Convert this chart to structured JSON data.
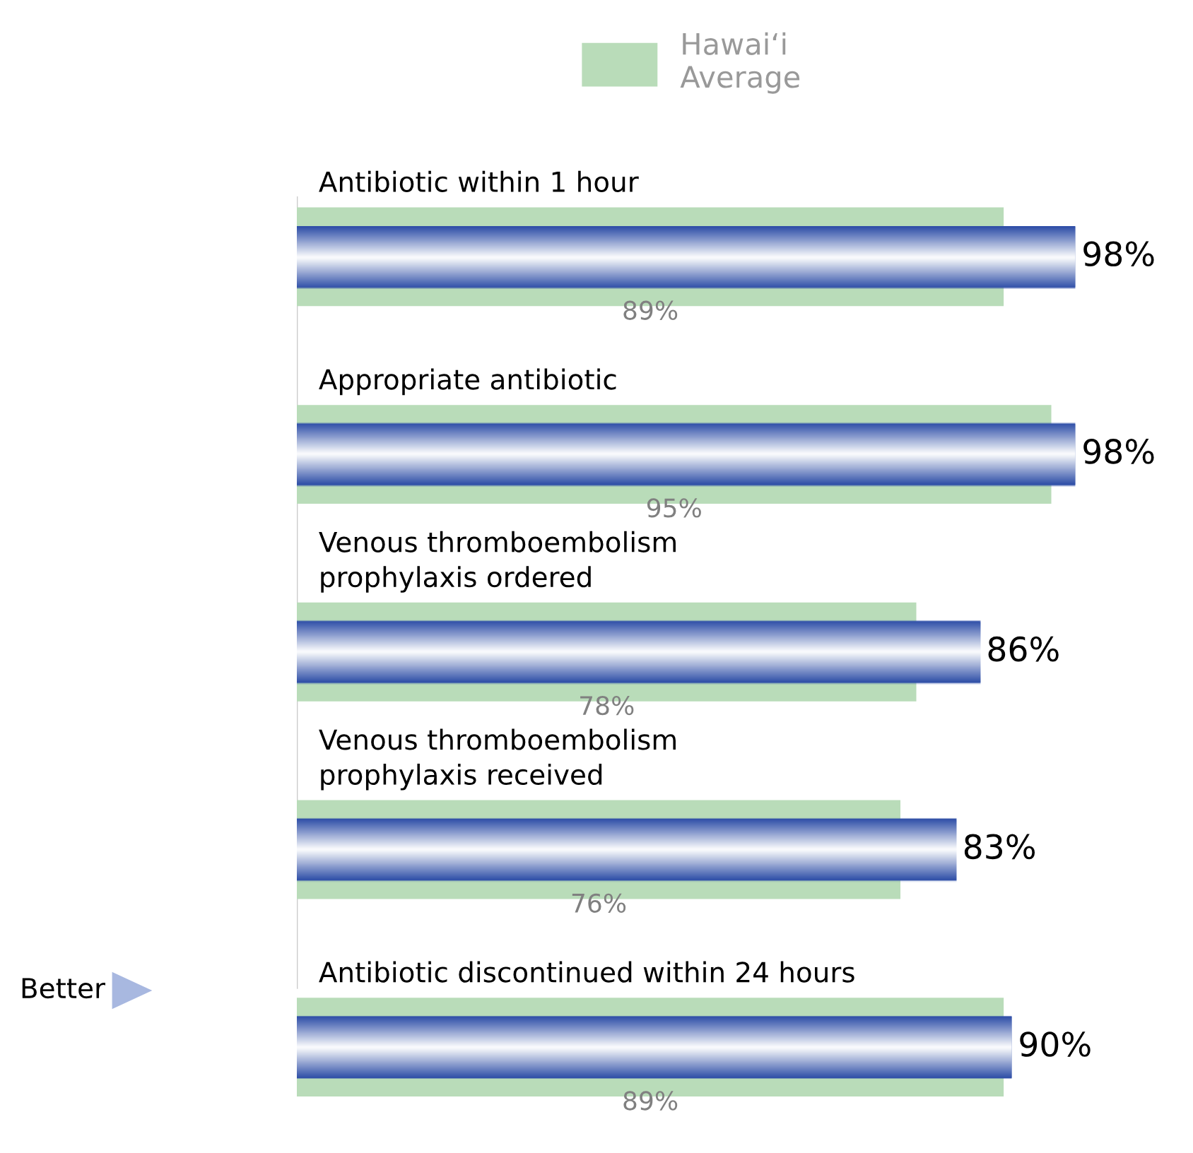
{
  "chart_data": {
    "type": "bar",
    "orientation": "horizontal",
    "legend": "top",
    "categories": [
      "Antibiotic within 1 hour",
      "Appropriate antibiotic",
      "Venous thromboembolism\nprophylaxis ordered",
      "Venous thromboembolism\nprophylaxis received",
      "Antibiotic discontinued within 24 hours"
    ],
    "series": [
      {
        "name": "Hawai‘i\nAverage",
        "color": "#b9dcb9",
        "values": [
          89,
          95,
          78,
          76,
          89
        ],
        "value_labels": [
          "89%",
          "95%",
          "78%",
          "76%",
          "89%"
        ]
      },
      {
        "color": "#2f4fa8",
        "values": [
          98,
          98,
          86,
          83,
          90
        ],
        "value_labels": [
          "98%",
          "98%",
          "86%",
          "83%",
          "90%"
        ]
      }
    ],
    "annotations": [
      "Better"
    ]
  }
}
